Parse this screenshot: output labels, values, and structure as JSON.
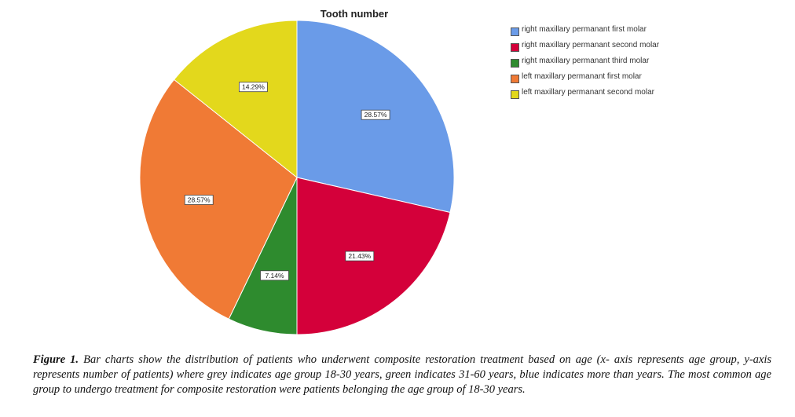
{
  "chart_data": {
    "type": "pie",
    "title": "Tooth number",
    "slices": [
      {
        "label": "right maxillary permanant first molar",
        "value": 28.57,
        "display": "28.57%",
        "color": "#6a9be8"
      },
      {
        "label": "right maxillary permanant second molar",
        "value": 21.43,
        "display": "21.43%",
        "color": "#d4003a"
      },
      {
        "label": "right maxillary permanant third molar",
        "value": 7.14,
        "display": "7.14%",
        "color": "#2e8b2e"
      },
      {
        "label": "left maxillary permanant first molar",
        "value": 28.57,
        "display": "28.57%",
        "color": "#f07a35"
      },
      {
        "label": "left maxillary permanant second molar",
        "value": 14.29,
        "display": "14.29%",
        "color": "#e3d81c"
      }
    ],
    "legend_position": "right"
  },
  "caption": {
    "label": "Figure 1.",
    "text": "Bar charts show the distribution of patients who underwent composite restoration treatment based on age (x- axis represents age group, y-axis represents number of patients) where grey indicates age group 18-30 years, green indicates 31-60 years, blue indicates more than years. The most common age group to undergo treatment for composite restoration were patients belonging the age group of 18-30 years."
  }
}
